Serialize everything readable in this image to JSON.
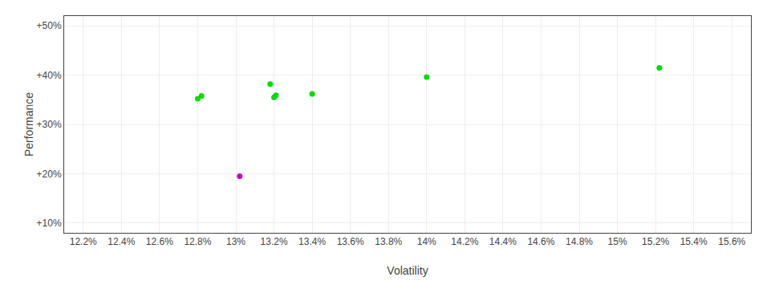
{
  "chart_data": {
    "type": "scatter",
    "x_label": "Volatility",
    "y_label": "Performance",
    "series": [
      {
        "color": "#00dd00",
        "marker": "circle",
        "x": [
          12.8,
          12.82,
          13.18,
          13.2,
          13.21,
          13.4,
          14.0,
          15.22
        ],
        "values": [
          35.2,
          35.8,
          38.2,
          35.5,
          35.9,
          36.2,
          39.6,
          41.5
        ]
      },
      {
        "color": "#cc00cc",
        "marker": "circle",
        "x": [
          13.02
        ],
        "values": [
          19.5
        ]
      }
    ],
    "xlim": [
      12.1,
      15.7
    ],
    "ylim": [
      8,
      52
    ],
    "xticks": [
      {
        "value": 12.2,
        "label": "12.2%"
      },
      {
        "value": 12.4,
        "label": "12.4%"
      },
      {
        "value": 12.6,
        "label": "12.6%"
      },
      {
        "value": 12.8,
        "label": "12.8%"
      },
      {
        "value": 13.0,
        "label": "13%"
      },
      {
        "value": 13.2,
        "label": "13.2%"
      },
      {
        "value": 13.4,
        "label": "13.4%"
      },
      {
        "value": 13.6,
        "label": "13.6%"
      },
      {
        "value": 13.8,
        "label": "13.8%"
      },
      {
        "value": 14.0,
        "label": "14%"
      },
      {
        "value": 14.2,
        "label": "14.2%"
      },
      {
        "value": 14.4,
        "label": "14.4%"
      },
      {
        "value": 14.6,
        "label": "14.6%"
      },
      {
        "value": 14.8,
        "label": "14.8%"
      },
      {
        "value": 15.0,
        "label": "15%"
      },
      {
        "value": 15.2,
        "label": "15.2%"
      },
      {
        "value": 15.4,
        "label": "15.4%"
      },
      {
        "value": 15.6,
        "label": "15.6%"
      }
    ],
    "yticks": [
      {
        "value": 10,
        "label": "+10%"
      },
      {
        "value": 20,
        "label": "+20%"
      },
      {
        "value": 30,
        "label": "+30%"
      },
      {
        "value": 40,
        "label": "+40%"
      },
      {
        "value": 50,
        "label": "+50%"
      }
    ],
    "grid": true
  }
}
